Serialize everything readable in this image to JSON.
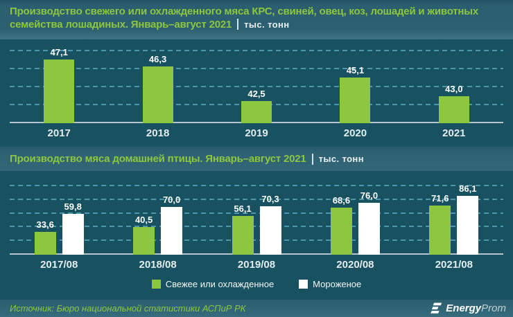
{
  "header": {
    "title_line1": "Производство свежего или охлажденного мяса КРС, свиней, овец, коз, лошадей и животных",
    "title_line2": "семейства лошадиных. Январь–август 2021",
    "unit": "тыс. тонн"
  },
  "section2": {
    "title": "Производство мяса домашней птицы. Январь–август 2021",
    "unit": "тыс. тонн"
  },
  "footer": {
    "source": "Источник: Бюро национальной статистики АСПиР РК",
    "logo_bold": "Energy",
    "logo_light": "Prom",
    "logo_icon": "energyprom-stylized-e-icon"
  },
  "colors": {
    "green": "#8DC63F",
    "white_bar": "#FFFFFF",
    "panel_bg": "#185260",
    "band_bg": "#2E6272",
    "gridline": "#4E96AC",
    "baseline": "#B7C6CC",
    "title_green": "#8DC63F"
  },
  "chart_data": [
    {
      "type": "bar",
      "title": "Производство свежего или охлажденного мяса КРС, свиней, овец, коз, лошадей и животных семейства лошадиных. Январь–август 2021",
      "ylabel": "тыс. тонн",
      "xlabel": "",
      "categories": [
        "2017",
        "2018",
        "2019",
        "2020",
        "2021"
      ],
      "values": [
        47.1,
        46.3,
        42.5,
        45.1,
        43.0
      ],
      "labels": [
        "47,1",
        "46,3",
        "42,5",
        "45,1",
        "43,0"
      ],
      "bar_color": "#8DC63F",
      "ylim": [
        40,
        48
      ],
      "gridlines": [
        42,
        44,
        46,
        48
      ],
      "grid": "dashed",
      "legend_position": "none"
    },
    {
      "type": "bar",
      "title": "Производство мяса домашней птицы. Январь–август 2021",
      "ylabel": "тыс. тонн",
      "xlabel": "",
      "categories": [
        "2017/08",
        "2018/08",
        "2019/08",
        "2020/08",
        "2021/08"
      ],
      "series": [
        {
          "name": "Свежее или охлажденное",
          "color": "#8DC63F",
          "values": [
            33.6,
            40.5,
            56.1,
            68.6,
            71.6
          ],
          "labels": [
            "33,6",
            "40,5",
            "56,1",
            "68,6",
            "71,6"
          ]
        },
        {
          "name": "Мороженое",
          "color": "#FFFFFF",
          "values": [
            59.8,
            70.0,
            70.3,
            76.0,
            86.1
          ],
          "labels": [
            "59,8",
            "70,0",
            "70,3",
            "76,0",
            "86,1"
          ]
        }
      ],
      "ylim": [
        0,
        100
      ],
      "gridlines": [
        20,
        40,
        60,
        80,
        100
      ],
      "grid": "dashed",
      "legend_position": "bottom"
    }
  ]
}
